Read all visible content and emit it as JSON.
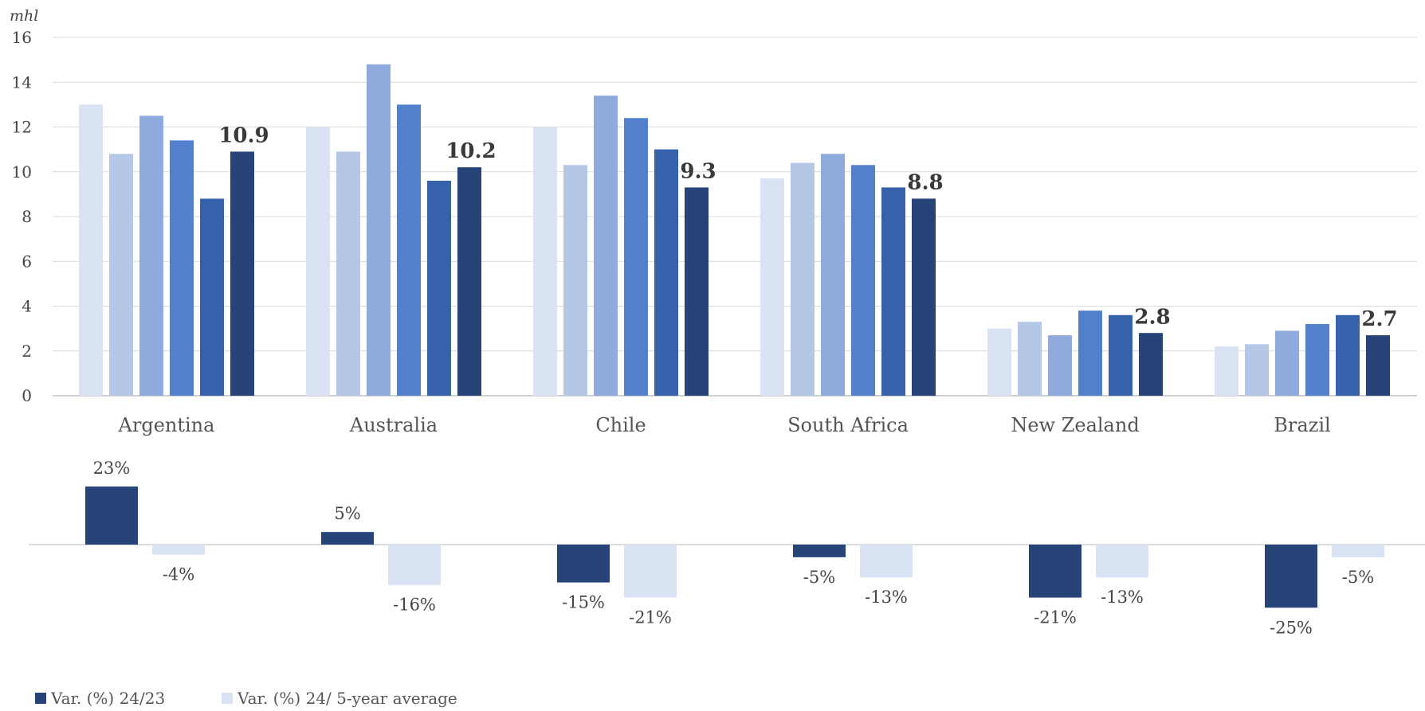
{
  "chart_data": [
    {
      "type": "bar",
      "ylabel": "mhl",
      "ylim": [
        0,
        16
      ],
      "yticks": [
        0,
        2,
        4,
        6,
        8,
        10,
        12,
        14,
        16
      ],
      "grid": true,
      "categories": [
        "Argentina",
        "Australia",
        "Chile",
        "South Africa",
        "New Zealand",
        "Brazil"
      ],
      "series": [
        {
          "color": "#dae3f3",
          "values": [
            13.0,
            12.0,
            12.0,
            9.7,
            3.0,
            2.2
          ]
        },
        {
          "color": "#b4c7e7",
          "values": [
            10.8,
            10.9,
            10.3,
            10.4,
            3.3,
            2.3
          ]
        },
        {
          "color": "#8faadc",
          "values": [
            12.5,
            14.8,
            13.4,
            10.8,
            2.7,
            2.9
          ]
        },
        {
          "color": "#5280cc",
          "values": [
            11.4,
            13.0,
            12.4,
            10.3,
            3.8,
            3.2
          ]
        },
        {
          "color": "#3662ab",
          "values": [
            8.8,
            9.6,
            11.0,
            9.3,
            3.6,
            3.6
          ]
        },
        {
          "color": "#264478",
          "values": [
            10.9,
            10.2,
            9.3,
            8.8,
            2.8,
            2.7
          ]
        }
      ],
      "data_labels": [
        "10.9",
        "10.2",
        "9.3",
        "8.8",
        "2.8",
        "2.7"
      ]
    },
    {
      "type": "bar",
      "categories": [
        "Argentina",
        "Australia",
        "Chile",
        "South Africa",
        "New Zealand",
        "Brazil"
      ],
      "legend_position": "bottom-left",
      "series": [
        {
          "name": "Var. (%) 24/23",
          "color": "#264478",
          "values": [
            23,
            5,
            -15,
            -5,
            -21,
            -25
          ],
          "labels": [
            "23%",
            "5%",
            "-15%",
            "-5%",
            "-21%",
            "-25%"
          ]
        },
        {
          "name": "Var. (%) 24/ 5-year average",
          "color": "#dae3f3",
          "values": [
            -4,
            -16,
            -21,
            -13,
            -13,
            -5
          ],
          "labels": [
            "-4%",
            "-16%",
            "-21%",
            "-13%",
            "-13%",
            "-5%"
          ]
        }
      ]
    }
  ]
}
